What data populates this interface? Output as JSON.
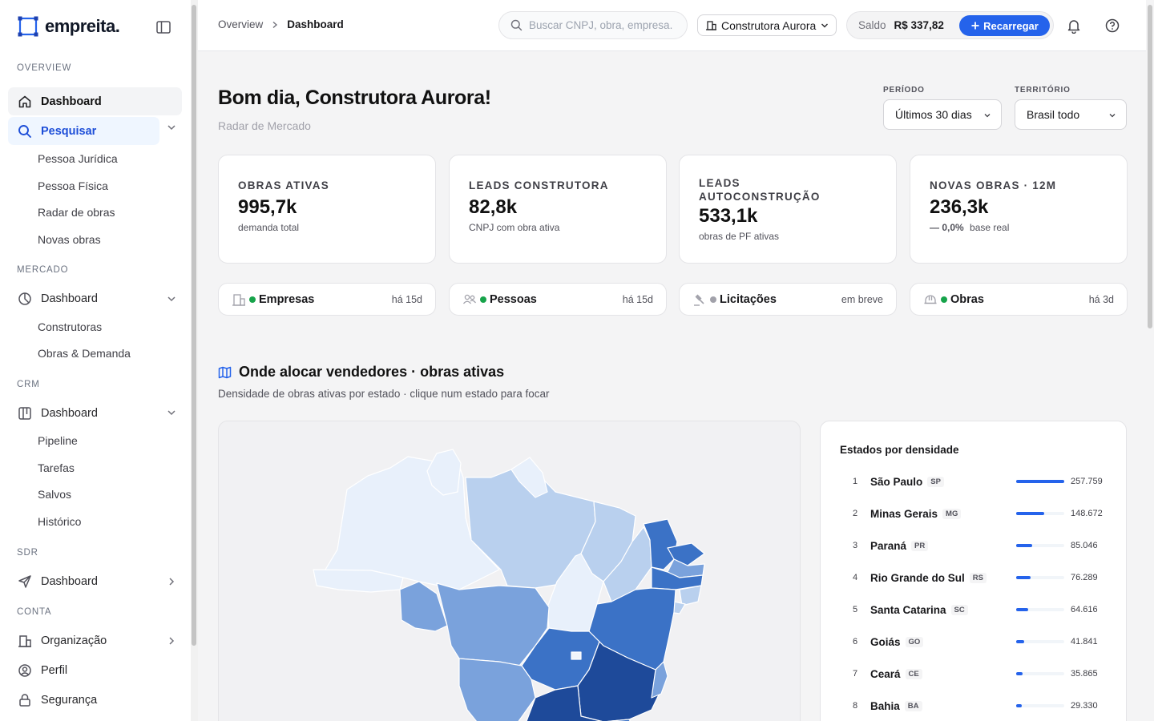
{
  "brand": {
    "name": "empreita."
  },
  "sidebar": {
    "sections": [
      {
        "label": "OVERVIEW"
      },
      {
        "label": "MERCADO"
      },
      {
        "label": "CRM"
      },
      {
        "label": "SDR"
      },
      {
        "label": "CONTA"
      }
    ],
    "overview": {
      "dashboard": "Dashboard",
      "search": "Pesquisar",
      "search_items": [
        "Pessoa Jurídica",
        "Pessoa Física",
        "Radar de obras",
        "Novas obras"
      ]
    },
    "mercado": {
      "dashboard": "Dashboard",
      "items": [
        "Construtoras",
        "Obras & Demanda"
      ]
    },
    "crm": {
      "dashboard": "Dashboard",
      "items": [
        "Pipeline",
        "Tarefas",
        "Salvos",
        "Histórico"
      ]
    },
    "sdr": {
      "dashboard": "Dashboard"
    },
    "conta": {
      "organization": "Organização",
      "profile": "Perfil",
      "security": "Segurança"
    }
  },
  "header": {
    "breadcrumb": {
      "parent": "Overview",
      "current": "Dashboard"
    },
    "search_placeholder": "Buscar CNPJ, obra, empresa...",
    "organization": "Construtora Aurora",
    "balance_label": "Saldo",
    "balance_value": "R$ 337,82",
    "recharge_label": "Recarregar"
  },
  "main": {
    "greeting": "Bom dia, Construtora Aurora!",
    "subtitle": "Radar de Mercado",
    "filters": {
      "period_label": "PERÍODO",
      "period_value": "Últimos 30 dias",
      "territory_label": "TERRITÓRIO",
      "territory_value": "Brasil todo"
    },
    "stats": [
      {
        "label": "OBRAS ATIVAS",
        "value": "995,7k",
        "desc": "demanda total"
      },
      {
        "label": "LEADS CONSTRUTORA",
        "value": "82,8k",
        "desc": "CNPJ com obra ativa"
      },
      {
        "label": "LEADS AUTOCONSTRUÇÃO",
        "value": "533,1k",
        "desc": "obras de PF ativas"
      },
      {
        "label": "NOVAS OBRAS · 12M",
        "value": "236,3k",
        "trend": "— 0,0%",
        "desc": "base real"
      }
    ],
    "sources": [
      {
        "name": "Empresas",
        "age": "há 15d",
        "status_color": "#16a34a"
      },
      {
        "name": "Pessoas",
        "age": "há 15d",
        "status_color": "#16a34a"
      },
      {
        "name": "Licitações",
        "age": "em breve",
        "status_color": "#a1a1aa"
      },
      {
        "name": "Obras",
        "age": "há 3d",
        "status_color": "#16a34a"
      }
    ],
    "map_section": {
      "title": "Onde alocar vendedores · obras ativas",
      "subtitle": "Densidade de obras ativas por estado · clique num estado para focar"
    },
    "ranking": {
      "title": "Estados por densidade",
      "rows": [
        {
          "rank": "1",
          "name": "São Paulo",
          "uf": "SP",
          "value": "257.759",
          "share": 1.0
        },
        {
          "rank": "2",
          "name": "Minas Gerais",
          "uf": "MG",
          "value": "148.672",
          "share": 0.577
        },
        {
          "rank": "3",
          "name": "Paraná",
          "uf": "PR",
          "value": "85.046",
          "share": 0.33
        },
        {
          "rank": "4",
          "name": "Rio Grande do Sul",
          "uf": "RS",
          "value": "76.289",
          "share": 0.296
        },
        {
          "rank": "5",
          "name": "Santa Catarina",
          "uf": "SC",
          "value": "64.616",
          "share": 0.251
        },
        {
          "rank": "6",
          "name": "Goiás",
          "uf": "GO",
          "value": "41.841",
          "share": 0.162
        },
        {
          "rank": "7",
          "name": "Ceará",
          "uf": "CE",
          "value": "35.865",
          "share": 0.139
        },
        {
          "rank": "8",
          "name": "Bahia",
          "uf": "BA",
          "value": "29.330",
          "share": 0.114
        }
      ]
    }
  },
  "colors": {
    "accent": "#2563eb",
    "map_light": "#e8f0fb",
    "map_mid": "#7aa2dc",
    "map_dark": "#1e4a9a"
  }
}
